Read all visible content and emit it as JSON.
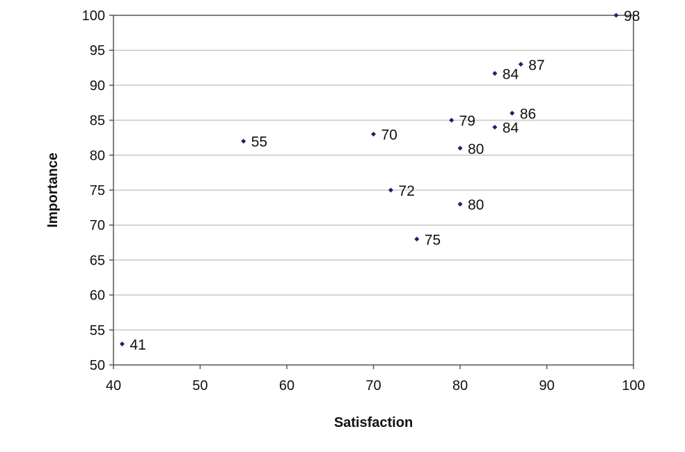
{
  "chart_data": {
    "type": "scatter",
    "xlabel": "Satisfaction",
    "ylabel": "Importance",
    "xlim": [
      40,
      100
    ],
    "ylim": [
      50,
      100
    ],
    "x_ticks": [
      40,
      50,
      60,
      70,
      80,
      90,
      100
    ],
    "y_ticks": [
      50,
      55,
      60,
      65,
      70,
      75,
      80,
      85,
      90,
      95,
      100
    ],
    "grid": "horizontal",
    "legend": "none",
    "marker_color": "#1f1f6b",
    "grid_color": "#c8c8c8",
    "points": [
      {
        "x": 98,
        "y": 100,
        "label": "98"
      },
      {
        "x": 87,
        "y": 93,
        "label": "87"
      },
      {
        "x": 84,
        "y": 91.7,
        "label": "84"
      },
      {
        "x": 86,
        "y": 86,
        "label": "86"
      },
      {
        "x": 79,
        "y": 85,
        "label": "79"
      },
      {
        "x": 84,
        "y": 84,
        "label": "84"
      },
      {
        "x": 70,
        "y": 83,
        "label": "70"
      },
      {
        "x": 55,
        "y": 82,
        "label": "55"
      },
      {
        "x": 80,
        "y": 81,
        "label": "80"
      },
      {
        "x": 72,
        "y": 75,
        "label": "72"
      },
      {
        "x": 80,
        "y": 73,
        "label": "80"
      },
      {
        "x": 75,
        "y": 68,
        "label": "75"
      },
      {
        "x": 41,
        "y": 53,
        "label": "41"
      }
    ]
  }
}
